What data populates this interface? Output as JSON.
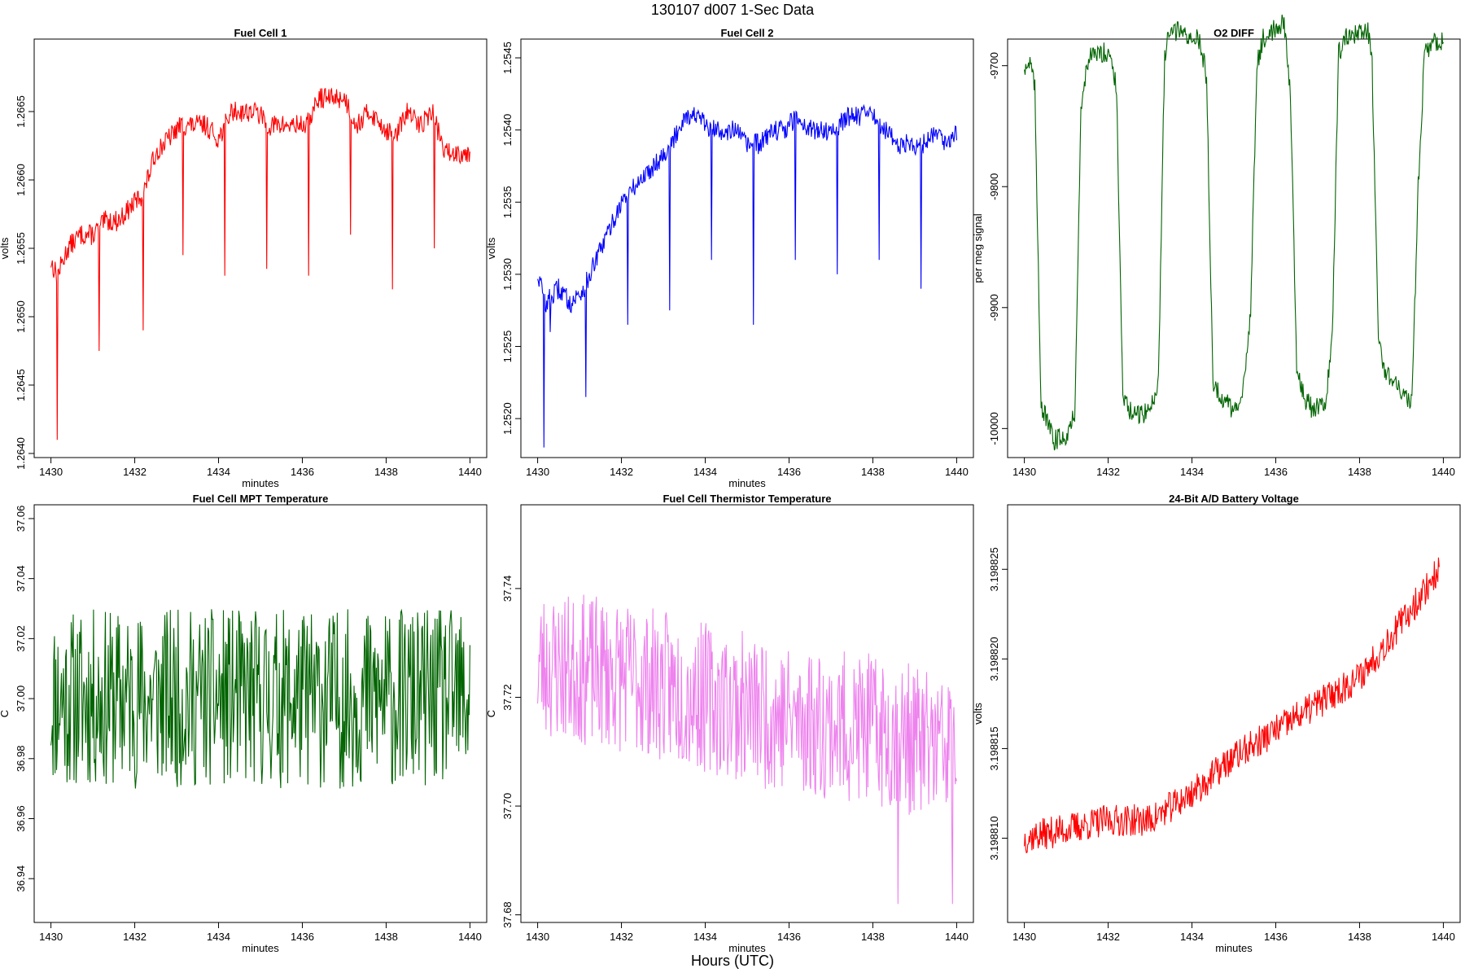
{
  "page": {
    "title": "130107   d007   1-Sec Data",
    "bottom_label": "Hours (UTC)"
  },
  "chart_data": [
    {
      "type": "line",
      "title": "Fuel Cell 1",
      "xlabel": "minutes",
      "ylabel": "volts",
      "xlim": [
        1429.6,
        1440.4
      ],
      "ylim": [
        1.26397,
        1.26703
      ],
      "xticks": [
        1430,
        1432,
        1434,
        1436,
        1438,
        1440
      ],
      "xtick_labels": [
        "1430",
        "1432",
        "1434",
        "1436",
        "1438",
        "1440"
      ],
      "yticks": [
        1.264,
        1.2645,
        1.265,
        1.2655,
        1.266,
        1.2665
      ],
      "ytick_labels": [
        "1.2640",
        "1.2645",
        "1.2650",
        "1.2655",
        "1.2660",
        "1.2665"
      ],
      "color": "#ff0000",
      "series": [
        {
          "x": [
            1430.0,
            1430.15,
            1430.4,
            1430.7,
            1431.0,
            1431.3,
            1431.6,
            1431.9,
            1432.2,
            1432.5,
            1432.8,
            1433.1,
            1433.4,
            1433.7,
            1434.0,
            1434.3,
            1434.6,
            1434.9,
            1435.2,
            1435.5,
            1435.8,
            1436.1,
            1436.4,
            1436.7,
            1437.0,
            1437.3,
            1437.6,
            1437.9,
            1438.2,
            1438.5,
            1438.8,
            1439.1,
            1439.4,
            1439.7,
            1440.0
          ],
          "values": [
            1.2654,
            1.2653,
            1.2655,
            1.2656,
            1.2656,
            1.2657,
            1.2657,
            1.2658,
            1.2659,
            1.2662,
            1.2663,
            1.2664,
            1.2664,
            1.2664,
            1.2663,
            1.2665,
            1.2665,
            1.2665,
            1.2664,
            1.2664,
            1.2664,
            1.2664,
            1.2666,
            1.2666,
            1.2666,
            1.2664,
            1.2665,
            1.2664,
            1.2663,
            1.2665,
            1.2664,
            1.2665,
            1.2662,
            1.2662,
            1.2662
          ]
        }
      ],
      "dips": [
        {
          "x": 1430.15,
          "y": 1.2641
        },
        {
          "x": 1431.15,
          "y": 1.26475
        },
        {
          "x": 1432.2,
          "y": 1.2649
        },
        {
          "x": 1433.15,
          "y": 1.26545
        },
        {
          "x": 1434.15,
          "y": 1.2653
        },
        {
          "x": 1435.15,
          "y": 1.26535
        },
        {
          "x": 1436.15,
          "y": 1.2653
        },
        {
          "x": 1437.15,
          "y": 1.2656
        },
        {
          "x": 1438.15,
          "y": 1.2652
        },
        {
          "x": 1439.15,
          "y": 1.2655
        }
      ]
    },
    {
      "type": "line",
      "title": "Fuel Cell 2",
      "xlabel": "minutes",
      "ylabel": "volts",
      "xlim": [
        1429.6,
        1440.4
      ],
      "ylim": [
        1.25173,
        1.25463
      ],
      "xticks": [
        1430,
        1432,
        1434,
        1436,
        1438,
        1440
      ],
      "xtick_labels": [
        "1430",
        "1432",
        "1434",
        "1436",
        "1438",
        "1440"
      ],
      "yticks": [
        1.252,
        1.2525,
        1.253,
        1.2535,
        1.254,
        1.2545
      ],
      "ytick_labels": [
        "1.2520",
        "1.2525",
        "1.2530",
        "1.2535",
        "1.2540",
        "1.2545"
      ],
      "color": "#0000ff",
      "series": [
        {
          "x": [
            1430.0,
            1430.2,
            1430.5,
            1430.8,
            1431.1,
            1431.4,
            1431.7,
            1432.0,
            1432.3,
            1432.6,
            1432.9,
            1433.2,
            1433.5,
            1433.8,
            1434.1,
            1434.4,
            1434.7,
            1435.0,
            1435.3,
            1435.6,
            1435.9,
            1436.2,
            1436.5,
            1436.8,
            1437.1,
            1437.4,
            1437.7,
            1438.0,
            1438.3,
            1438.6,
            1438.9,
            1439.2,
            1439.5,
            1439.8,
            1440.0
          ],
          "values": [
            1.253,
            1.2528,
            1.2529,
            1.2528,
            1.2529,
            1.2531,
            1.2533,
            1.2535,
            1.2536,
            1.2537,
            1.2538,
            1.2539,
            1.2541,
            1.2541,
            1.254,
            1.254,
            1.254,
            1.2539,
            1.2539,
            1.254,
            1.254,
            1.2541,
            1.254,
            1.254,
            1.254,
            1.2541,
            1.2541,
            1.2541,
            1.254,
            1.2539,
            1.2539,
            1.2539,
            1.254,
            1.2539,
            1.254
          ]
        }
      ],
      "dips": [
        {
          "x": 1430.15,
          "y": 1.2518
        },
        {
          "x": 1430.3,
          "y": 1.2526
        },
        {
          "x": 1431.15,
          "y": 1.25215
        },
        {
          "x": 1432.15,
          "y": 1.25265
        },
        {
          "x": 1433.15,
          "y": 1.25275
        },
        {
          "x": 1434.15,
          "y": 1.2531
        },
        {
          "x": 1435.15,
          "y": 1.25265
        },
        {
          "x": 1436.15,
          "y": 1.2531
        },
        {
          "x": 1437.15,
          "y": 1.253
        },
        {
          "x": 1438.15,
          "y": 1.2531
        },
        {
          "x": 1439.15,
          "y": 1.2529
        }
      ]
    },
    {
      "type": "line",
      "title": "O2 DIFF",
      "xlabel": "",
      "ylabel": "per meg signal",
      "xlim": [
        1429.6,
        1440.4
      ],
      "ylim": [
        -10024,
        -9678
      ],
      "xticks": [
        1430,
        1432,
        1434,
        1436,
        1438,
        1440
      ],
      "xtick_labels": [
        "1430",
        "1432",
        "1434",
        "1436",
        "1438",
        "1440"
      ],
      "yticks": [
        -10000,
        -9900,
        -9800,
        -9700
      ],
      "ytick_labels": [
        "-10000",
        "-9900",
        "-9800",
        "-9700"
      ],
      "color": "#006400",
      "series": [
        {
          "x": [
            1430.0,
            1430.15,
            1430.25,
            1430.4,
            1430.7,
            1431.0,
            1431.2,
            1431.35,
            1431.5,
            1431.8,
            1432.05,
            1432.2,
            1432.35,
            1432.6,
            1433.0,
            1433.2,
            1433.35,
            1433.5,
            1433.8,
            1434.2,
            1434.35,
            1434.5,
            1434.7,
            1435.0,
            1435.2,
            1435.4,
            1435.55,
            1435.7,
            1435.9,
            1436.2,
            1436.35,
            1436.5,
            1436.7,
            1436.9,
            1437.2,
            1437.35,
            1437.5,
            1437.7,
            1437.9,
            1438.2,
            1438.3,
            1438.45,
            1438.6,
            1438.8,
            1439.1,
            1439.25,
            1439.4,
            1439.55,
            1439.75,
            1440.0
          ],
          "values": [
            -9700,
            -9698,
            -9720,
            -9980,
            -10010,
            -10005,
            -9990,
            -9740,
            -9695,
            -9690,
            -9688,
            -9720,
            -9975,
            -9990,
            -9985,
            -9960,
            -9690,
            -9670,
            -9673,
            -9680,
            -9710,
            -9960,
            -9975,
            -9985,
            -9980,
            -9900,
            -9700,
            -9678,
            -9672,
            -9665,
            -9720,
            -9950,
            -9975,
            -9985,
            -9975,
            -9920,
            -9690,
            -9676,
            -9675,
            -9672,
            -9700,
            -9930,
            -9950,
            -9960,
            -9975,
            -9980,
            -9800,
            -9690,
            -9682,
            -9680
          ]
        }
      ],
      "dips": []
    },
    {
      "type": "line",
      "title": "Fuel Cell MPT Temperature",
      "xlabel": "minutes",
      "ylabel": "C",
      "xlim": [
        1429.6,
        1440.4
      ],
      "ylim": [
        36.9254,
        37.0646
      ],
      "xticks": [
        1430,
        1432,
        1434,
        1436,
        1438,
        1440
      ],
      "xtick_labels": [
        "1430",
        "1432",
        "1434",
        "1436",
        "1438",
        "1440"
      ],
      "yticks": [
        36.94,
        36.96,
        36.98,
        37.0,
        37.02,
        37.04,
        37.06
      ],
      "ytick_labels": [
        "36.94",
        "36.96",
        "36.98",
        "37.00",
        "37.02",
        "37.04",
        "37.06"
      ],
      "color": "#006400",
      "series": [
        {
          "x": [
            1430,
            1432,
            1434,
            1436,
            1438,
            1440
          ],
          "values": [
            37.0,
            37.0,
            37.0,
            37.0,
            37.0,
            37.0
          ],
          "noise": 0.06,
          "seed": 11
        }
      ],
      "dips": []
    },
    {
      "type": "line",
      "title": "Fuel Cell Thermistor Temperature",
      "xlabel": "minutes",
      "ylabel": "C",
      "xlim": [
        1429.6,
        1440.4
      ],
      "ylim": [
        37.6786,
        37.7554
      ],
      "xticks": [
        1430,
        1432,
        1434,
        1436,
        1438,
        1440
      ],
      "xtick_labels": [
        "1430",
        "1432",
        "1434",
        "1436",
        "1438",
        "1440"
      ],
      "yticks": [
        37.68,
        37.7,
        37.72,
        37.74
      ],
      "ytick_labels": [
        "37.68",
        "37.70",
        "37.72",
        "37.74"
      ],
      "color": "#ee82ee",
      "series": [
        {
          "x": [
            1430,
            1432,
            1434,
            1436,
            1438,
            1440
          ],
          "values": [
            37.726,
            37.724,
            37.72,
            37.716,
            37.714,
            37.71
          ],
          "noise": 0.028,
          "seed": 23
        }
      ],
      "dips": [
        {
          "x": 1438.6,
          "y": 37.682
        },
        {
          "x": 1439.9,
          "y": 37.682
        }
      ]
    },
    {
      "type": "line",
      "title": "24-Bit A/D Battery Voltage",
      "xlabel": "minutes",
      "ylabel": "volts",
      "xlim": [
        1429.6,
        1440.4
      ],
      "ylim": [
        3.1988053,
        3.1988286
      ],
      "xticks": [
        1430,
        1432,
        1434,
        1436,
        1438,
        1440
      ],
      "xtick_labels": [
        "1430",
        "1432",
        "1434",
        "1436",
        "1438",
        "1440"
      ],
      "yticks": [
        3.19881,
        3.198815,
        3.19882,
        3.198825
      ],
      "ytick_labels": [
        "3.198810",
        "3.198815",
        "3.198820",
        "3.198825"
      ],
      "color": "#ff0000",
      "series": [
        {
          "x": [
            1430,
            1431,
            1432,
            1433,
            1434,
            1435,
            1436,
            1437,
            1438,
            1439,
            1439.9
          ],
          "values": [
            3.19881,
            3.1988105,
            3.198811,
            3.198811,
            3.1988125,
            3.1988145,
            3.198816,
            3.1988175,
            3.198819,
            3.198822,
            3.198825
          ],
          "noise": 1.8e-06,
          "seed": 37
        }
      ],
      "dips": []
    }
  ]
}
